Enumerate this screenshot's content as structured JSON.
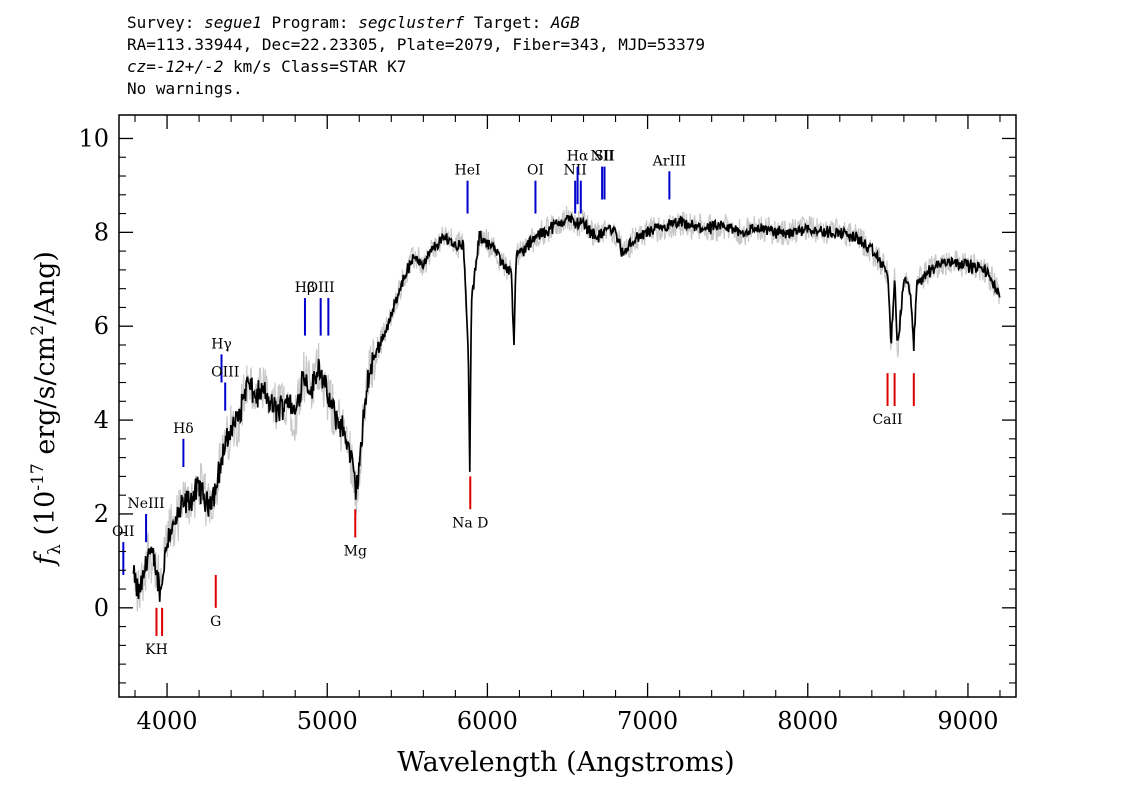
{
  "header": {
    "line1": {
      "survey_label": "Survey: ",
      "survey": "segue1",
      "program_label": " Program: ",
      "program": "segclusterf",
      "target_label": " Target: ",
      "target": "AGB"
    },
    "line2": "RA=113.33944, Dec=22.23305, Plate=2079, Fiber=343, MJD=53379",
    "line3": {
      "cz_label": "cz=",
      "cz_value": "-12+/-2",
      "rest": " km/s Class=STAR K7"
    },
    "line4": "No warnings."
  },
  "chart_data": {
    "type": "line",
    "xlabel": "Wavelength (Angstroms)",
    "ylabel_prefix": "f",
    "ylabel_sub": "λ",
    "ylabel_main": " (10",
    "ylabel_exp": "-17",
    "ylabel_rest": " erg/s/cm",
    "ylabel_exp2": "2",
    "ylabel_end": "/Ang)",
    "xlim": [
      3700,
      9300
    ],
    "ylim": [
      -1.9,
      10.5
    ],
    "xticks": [
      4000,
      5000,
      6000,
      7000,
      8000,
      9000
    ],
    "xtick_labels": [
      "4000",
      "5000",
      "6000",
      "7000",
      "8000",
      "9000"
    ],
    "yticks": [
      0,
      2,
      4,
      6,
      8,
      10
    ],
    "ytick_labels": [
      "0",
      "2",
      "4",
      "6",
      "8",
      "10"
    ],
    "series": [
      {
        "role": "flux",
        "color": "#000000",
        "x": [
          3790,
          3820,
          3850,
          3880,
          3920,
          3960,
          4000,
          4050,
          4100,
          4150,
          4200,
          4250,
          4300,
          4350,
          4400,
          4450,
          4500,
          4550,
          4600,
          4650,
          4700,
          4750,
          4800,
          4850,
          4900,
          4950,
          5000,
          5050,
          5100,
          5150,
          5180,
          5200,
          5250,
          5300,
          5350,
          5400,
          5450,
          5500,
          5550,
          5600,
          5650,
          5700,
          5750,
          5800,
          5850,
          5880,
          5890,
          5900,
          5950,
          6000,
          6050,
          6100,
          6150,
          6165,
          6180,
          6250,
          6300,
          6350,
          6400,
          6450,
          6500,
          6550,
          6600,
          6650,
          6700,
          6750,
          6800,
          6850,
          6900,
          6950,
          7000,
          7100,
          7200,
          7300,
          7400,
          7500,
          7600,
          7700,
          7800,
          7900,
          8000,
          8100,
          8200,
          8300,
          8400,
          8450,
          8500,
          8520,
          8542,
          8560,
          8600,
          8640,
          8662,
          8680,
          8700,
          8800,
          8900,
          9000,
          9100,
          9150,
          9200
        ],
        "y": [
          0.7,
          0.3,
          0.6,
          1.2,
          1.0,
          0.3,
          1.5,
          1.8,
          2.2,
          2.3,
          2.6,
          2.2,
          2.5,
          3.3,
          3.8,
          4.1,
          4.8,
          4.5,
          4.6,
          4.3,
          4.2,
          4.5,
          4.1,
          5.0,
          4.6,
          5.2,
          4.5,
          4.1,
          3.8,
          3.2,
          2.5,
          3.0,
          4.8,
          5.4,
          5.8,
          6.2,
          6.8,
          7.2,
          7.5,
          7.3,
          7.6,
          7.8,
          7.9,
          7.7,
          7.8,
          5.5,
          3.0,
          6.5,
          7.9,
          7.8,
          7.6,
          7.3,
          7.2,
          5.6,
          7.5,
          7.7,
          7.9,
          8.0,
          8.1,
          8.2,
          8.3,
          8.2,
          8.2,
          8.0,
          7.9,
          8.1,
          8.0,
          7.5,
          7.8,
          7.9,
          8.0,
          8.1,
          8.2,
          8.1,
          8.1,
          8.1,
          8.0,
          8.1,
          8.0,
          8.0,
          8.1,
          8.0,
          8.0,
          7.9,
          7.6,
          7.4,
          7.1,
          5.6,
          7.0,
          5.5,
          7.0,
          6.8,
          5.5,
          6.9,
          7.0,
          7.3,
          7.4,
          7.3,
          7.2,
          7.0,
          6.6
        ]
      },
      {
        "role": "error",
        "color": "#c8c8c8"
      }
    ],
    "emission_lines": [
      {
        "label": "OII",
        "x": 3727,
        "y_top": 1.4,
        "y_bottom": 0.7
      },
      {
        "label": "NeIII",
        "x": 3869,
        "y_top": 2.0,
        "y_bottom": 1.4
      },
      {
        "label": "Hδ",
        "x": 4102,
        "y_top": 3.6,
        "y_bottom": 3.0
      },
      {
        "label": "Hγ",
        "x": 4340,
        "y_top": 5.4,
        "y_bottom": 4.8
      },
      {
        "label": "OIII",
        "x": 4363,
        "y_top": 4.8,
        "y_bottom": 4.2
      },
      {
        "label": "Hβ",
        "x": 4861,
        "y_top": 6.6,
        "y_bottom": 5.8
      },
      {
        "label": "OIII",
        "x": 4959,
        "y_top": 6.6,
        "y_bottom": 5.8
      },
      {
        "label": "",
        "x": 5007,
        "y_top": 6.6,
        "y_bottom": 5.8
      },
      {
        "label": "HeI",
        "x": 5876,
        "y_top": 9.1,
        "y_bottom": 8.4
      },
      {
        "label": "OI",
        "x": 6300,
        "y_top": 9.1,
        "y_bottom": 8.4
      },
      {
        "label": "NII",
        "x": 6548,
        "y_top": 9.1,
        "y_bottom": 8.4
      },
      {
        "label": "Hα",
        "x": 6563,
        "y_top": 9.4,
        "y_bottom": 8.6
      },
      {
        "label": "",
        "x": 6583,
        "y_top": 9.1,
        "y_bottom": 8.4
      },
      {
        "label": "NII",
        "x": 6716,
        "y_top": 9.4,
        "y_bottom": 8.7
      },
      {
        "label": "SII",
        "x": 6731,
        "y_top": 9.4,
        "y_bottom": 8.7
      },
      {
        "label": "ArIII",
        "x": 7136,
        "y_top": 9.3,
        "y_bottom": 8.7
      }
    ],
    "absorption_lines": [
      {
        "label": "KH",
        "x": 3934,
        "y_top": -0.0,
        "y_bottom": -0.6
      },
      {
        "label": "",
        "x": 3969,
        "y_top": -0.0,
        "y_bottom": -0.6
      },
      {
        "label": "G",
        "x": 4304,
        "y_top": 0.7,
        "y_bottom": 0.0
      },
      {
        "label": "Mg",
        "x": 5175,
        "y_top": 2.1,
        "y_bottom": 1.5
      },
      {
        "label": "Na D",
        "x": 5893,
        "y_top": 2.8,
        "y_bottom": 2.1
      },
      {
        "label": "CaII",
        "x": 8498,
        "y_top": 5.0,
        "y_bottom": 4.3
      },
      {
        "label": "",
        "x": 8542,
        "y_top": 5.0,
        "y_bottom": 4.3
      },
      {
        "label": "",
        "x": 8662,
        "y_top": 5.0,
        "y_bottom": 4.3
      }
    ],
    "colors": {
      "emission": "#0000cc",
      "absorption": "#dd0000",
      "flux": "#000000",
      "error": "#c8c8c8"
    }
  }
}
